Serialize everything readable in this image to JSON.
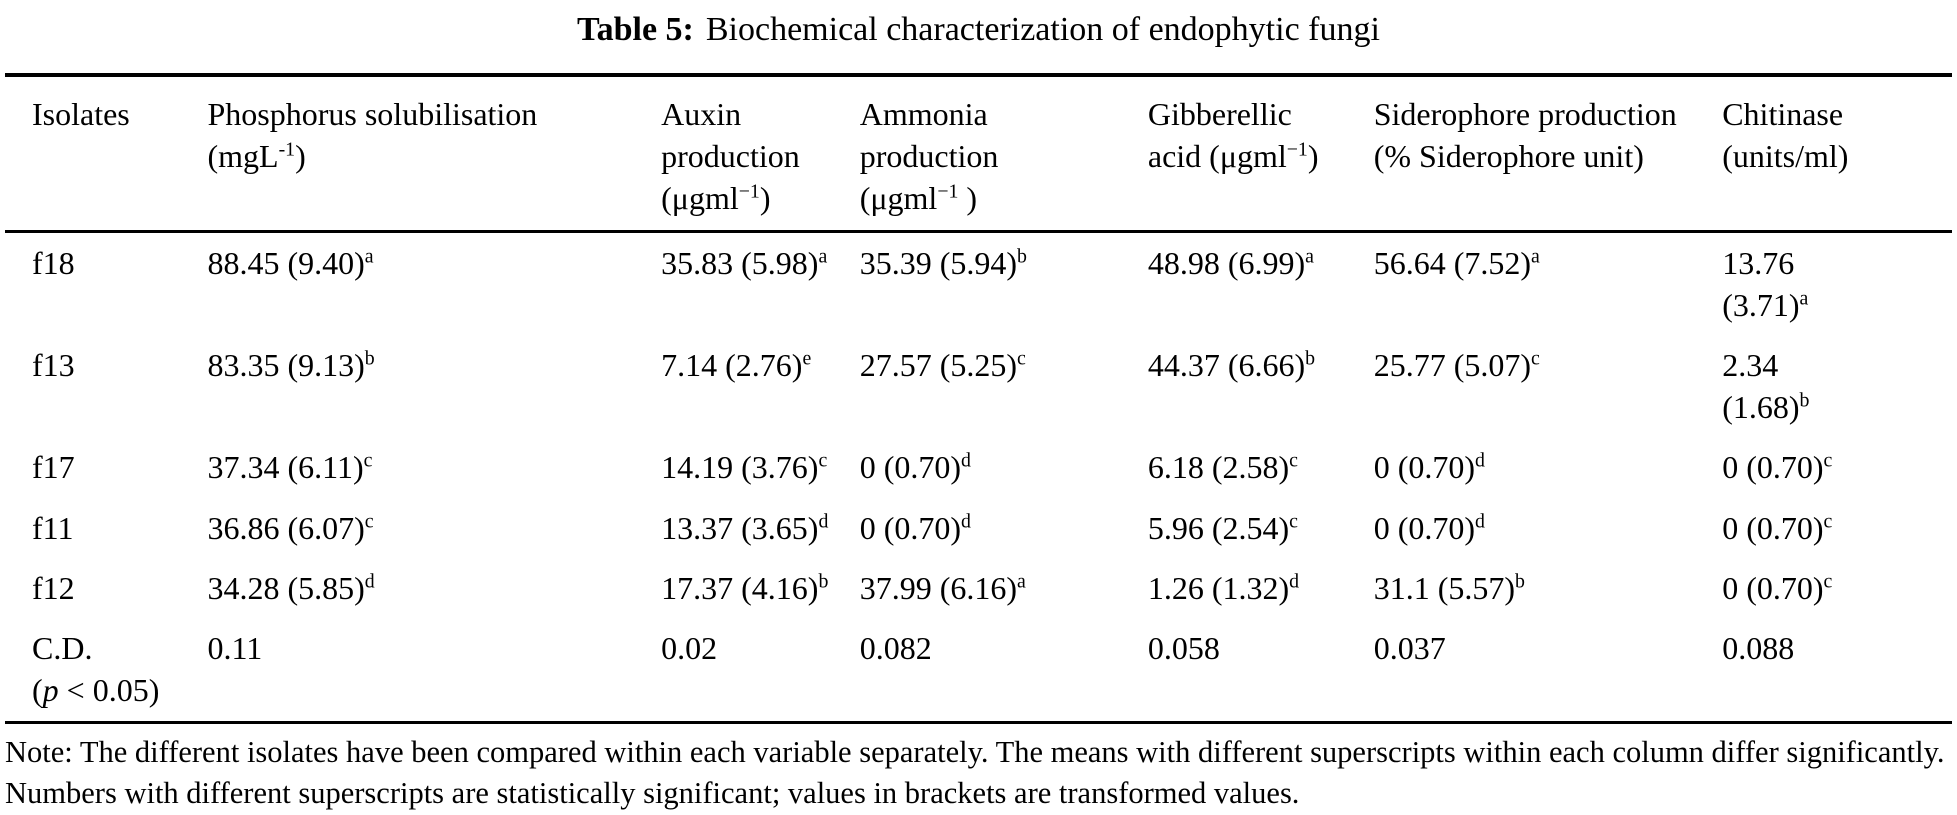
{
  "title": {
    "label": "Table 5:",
    "caption": "Biochemical characterization of endophytic fungi"
  },
  "table": {
    "headers": [
      {
        "name": "isolates",
        "parts": [
          {
            "t": "Isolates"
          }
        ]
      },
      {
        "name": "phosphorus-solubilisation",
        "parts": [
          {
            "t": "Phosphorus solubilisation"
          },
          {
            "br": true
          },
          {
            "t": "(mgL"
          },
          {
            "t": "-1",
            "sup": true
          },
          {
            "t": ")"
          }
        ]
      },
      {
        "name": "auxin-production",
        "parts": [
          {
            "t": "Auxin"
          },
          {
            "br": true
          },
          {
            "t": "production"
          },
          {
            "br": true
          },
          {
            "t": "(μgml"
          },
          {
            "t": "−1",
            "sup": true
          },
          {
            "t": ")"
          }
        ]
      },
      {
        "name": "ammonia-production",
        "parts": [
          {
            "t": "Ammonia"
          },
          {
            "br": true
          },
          {
            "t": "production"
          },
          {
            "br": true
          },
          {
            "t": "(μgml"
          },
          {
            "t": "−1",
            "sup": true
          },
          {
            "t": " )"
          }
        ]
      },
      {
        "name": "gibberellic-acid",
        "parts": [
          {
            "t": "Gibberellic"
          },
          {
            "br": true
          },
          {
            "t": "acid (μgml"
          },
          {
            "t": "−1",
            "sup": true
          },
          {
            "t": ")"
          }
        ]
      },
      {
        "name": "siderophore-production",
        "parts": [
          {
            "t": "Siderophore production"
          },
          {
            "br": true
          },
          {
            "t": "(% Siderophore unit)"
          }
        ]
      },
      {
        "name": "chitinase",
        "parts": [
          {
            "t": "Chitinase"
          },
          {
            "br": true
          },
          {
            "t": "(units/ml)"
          }
        ]
      }
    ],
    "rows": [
      {
        "label": [
          {
            "t": "f18"
          }
        ],
        "cells": [
          [
            {
              "t": "88.45 (9.40)"
            },
            {
              "t": "a",
              "sup": true
            }
          ],
          [
            {
              "t": "35.83 (5.98)"
            },
            {
              "t": "a",
              "sup": true
            }
          ],
          [
            {
              "t": "35.39 (5.94)"
            },
            {
              "t": "b",
              "sup": true
            }
          ],
          [
            {
              "t": "48.98 (6.99)"
            },
            {
              "t": "a",
              "sup": true
            }
          ],
          [
            {
              "t": "56.64 (7.52)"
            },
            {
              "t": "a",
              "sup": true
            }
          ],
          [
            {
              "t": "13.76"
            },
            {
              "br": true
            },
            {
              "t": "(3.71)"
            },
            {
              "t": "a",
              "sup": true
            }
          ]
        ]
      },
      {
        "label": [
          {
            "t": "f13"
          }
        ],
        "cells": [
          [
            {
              "t": "83.35 (9.13)"
            },
            {
              "t": "b",
              "sup": true
            }
          ],
          [
            {
              "t": "7.14 (2.76)"
            },
            {
              "t": "e",
              "sup": true
            }
          ],
          [
            {
              "t": "27.57 (5.25)"
            },
            {
              "t": "c",
              "sup": true
            }
          ],
          [
            {
              "t": "44.37 (6.66)"
            },
            {
              "t": "b",
              "sup": true
            }
          ],
          [
            {
              "t": "25.77 (5.07)"
            },
            {
              "t": "c",
              "sup": true
            }
          ],
          [
            {
              "t": "2.34"
            },
            {
              "br": true
            },
            {
              "t": "(1.68)"
            },
            {
              "t": "b",
              "sup": true
            }
          ]
        ]
      },
      {
        "label": [
          {
            "t": "f17"
          }
        ],
        "cells": [
          [
            {
              "t": "37.34 (6.11)"
            },
            {
              "t": "c",
              "sup": true
            }
          ],
          [
            {
              "t": "14.19 (3.76)"
            },
            {
              "t": "c",
              "sup": true
            }
          ],
          [
            {
              "t": "0 (0.70)"
            },
            {
              "t": "d",
              "sup": true
            }
          ],
          [
            {
              "t": "6.18 (2.58)"
            },
            {
              "t": "c",
              "sup": true
            }
          ],
          [
            {
              "t": "0 (0.70)"
            },
            {
              "t": "d",
              "sup": true
            }
          ],
          [
            {
              "t": "0 (0.70)"
            },
            {
              "t": "c",
              "sup": true
            }
          ]
        ]
      },
      {
        "label": [
          {
            "t": "f11"
          }
        ],
        "cells": [
          [
            {
              "t": "36.86 (6.07)"
            },
            {
              "t": "c",
              "sup": true
            }
          ],
          [
            {
              "t": "13.37 (3.65)"
            },
            {
              "t": "d",
              "sup": true
            }
          ],
          [
            {
              "t": "0 (0.70)"
            },
            {
              "t": "d",
              "sup": true
            }
          ],
          [
            {
              "t": "5.96 (2.54)"
            },
            {
              "t": "c",
              "sup": true
            }
          ],
          [
            {
              "t": "0 (0.70)"
            },
            {
              "t": "d",
              "sup": true
            }
          ],
          [
            {
              "t": "0 (0.70)"
            },
            {
              "t": "c",
              "sup": true
            }
          ]
        ]
      },
      {
        "label": [
          {
            "t": "f12"
          }
        ],
        "cells": [
          [
            {
              "t": "34.28 (5.85)"
            },
            {
              "t": "d",
              "sup": true
            }
          ],
          [
            {
              "t": "17.37 (4.16)"
            },
            {
              "t": "b",
              "sup": true
            }
          ],
          [
            {
              "t": "37.99 (6.16)"
            },
            {
              "t": "a",
              "sup": true
            }
          ],
          [
            {
              "t": "1.26 (1.32)"
            },
            {
              "t": "d",
              "sup": true
            }
          ],
          [
            {
              "t": "31.1 (5.57)"
            },
            {
              "t": "b",
              "sup": true
            }
          ],
          [
            {
              "t": "0 (0.70)"
            },
            {
              "t": "c",
              "sup": true
            }
          ]
        ]
      },
      {
        "label": [
          {
            "t": "C.D."
          },
          {
            "br": true
          },
          {
            "t": "("
          },
          {
            "t": "p",
            "i": true
          },
          {
            "t": " < 0.05)"
          }
        ],
        "cells": [
          [
            {
              "t": "0.11"
            }
          ],
          [
            {
              "t": "0.02"
            }
          ],
          [
            {
              "t": "0.082"
            }
          ],
          [
            {
              "t": "0.058"
            }
          ],
          [
            {
              "t": "0.037"
            }
          ],
          [
            {
              "t": "0.088"
            }
          ]
        ]
      }
    ]
  },
  "note": "Note: The different isolates have been compared within each variable separately. The means with different superscripts within each column differ significantly. Numbers with different superscripts are statistically significant; values in brackets are transformed values."
}
